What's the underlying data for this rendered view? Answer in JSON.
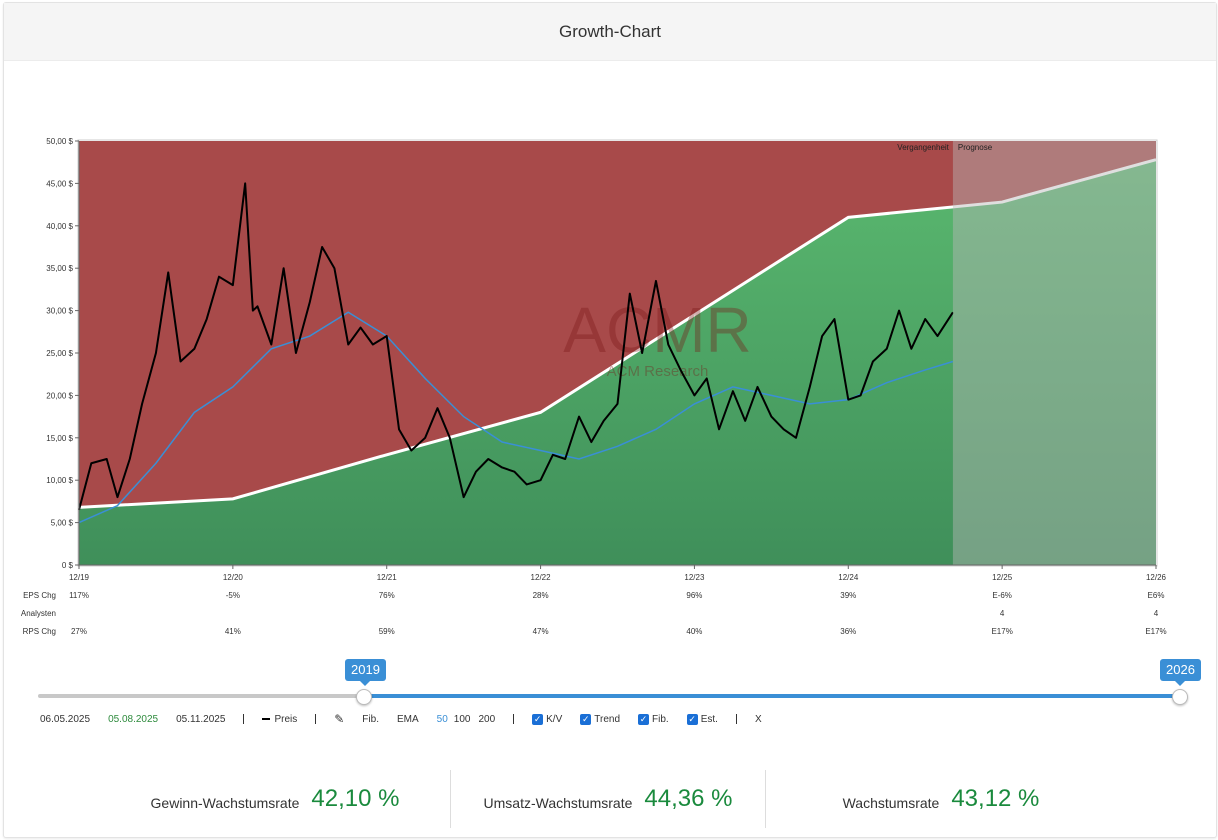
{
  "header": {
    "title": "Growth-Chart"
  },
  "chart_data": {
    "type": "line",
    "ticker": "ACMR",
    "company": "ACM Research",
    "y_ticks": [
      "0 $",
      "5,00 $",
      "10,00 $",
      "15,00 $",
      "20,00 $",
      "25,00 $",
      "30,00 $",
      "35,00 $",
      "40,00 $",
      "45,00 $",
      "50,00 $"
    ],
    "ylim": [
      0,
      50
    ],
    "x_ticks": [
      "12/19",
      "12/20",
      "12/21",
      "12/22",
      "12/23",
      "12/24",
      "12/25",
      "12/26"
    ],
    "xlim": [
      2019.92,
      2026.92
    ],
    "forecast_start": 2025.6,
    "zone_labels": {
      "past": "Vergangenheit",
      "forecast": "Prognose"
    },
    "fair_value_line": {
      "x": [
        2019.92,
        2020.92,
        2021.92,
        2022.92,
        2023.92,
        2024.92,
        2025.92,
        2026.92
      ],
      "y": [
        6.8,
        7.8,
        13.0,
        18.0,
        29.5,
        41.0,
        42.8,
        47.8
      ]
    },
    "price": {
      "x": [
        2019.92,
        2020.0,
        2020.1,
        2020.17,
        2020.25,
        2020.33,
        2020.42,
        2020.5,
        2020.58,
        2020.67,
        2020.75,
        2020.83,
        2020.92,
        2021.0,
        2021.05,
        2021.08,
        2021.17,
        2021.25,
        2021.33,
        2021.42,
        2021.5,
        2021.58,
        2021.67,
        2021.75,
        2021.83,
        2021.92,
        2022.0,
        2022.08,
        2022.17,
        2022.25,
        2022.33,
        2022.42,
        2022.5,
        2022.58,
        2022.67,
        2022.75,
        2022.83,
        2022.92,
        2023.0,
        2023.08,
        2023.17,
        2023.25,
        2023.33,
        2023.42,
        2023.5,
        2023.58,
        2023.67,
        2023.75,
        2023.83,
        2023.92,
        2024.0,
        2024.08,
        2024.17,
        2024.25,
        2024.33,
        2024.42,
        2024.5,
        2024.58,
        2024.67,
        2024.75,
        2024.83,
        2024.92,
        2025.0,
        2025.08,
        2025.17,
        2025.25,
        2025.33,
        2025.42,
        2025.5,
        2025.6
      ],
      "y": [
        6.5,
        12.0,
        12.5,
        8.0,
        12.5,
        19.0,
        25.0,
        34.5,
        24.0,
        25.5,
        29.0,
        34.0,
        33.0,
        45.0,
        30.0,
        30.5,
        26.0,
        35.0,
        25.0,
        31.0,
        37.5,
        35.0,
        26.0,
        28.0,
        26.0,
        27.0,
        16.0,
        13.5,
        15.0,
        18.5,
        15.0,
        8.0,
        11.0,
        12.5,
        11.5,
        11.0,
        9.5,
        10.0,
        13.0,
        12.5,
        17.5,
        14.5,
        17.0,
        19.0,
        32.0,
        25.0,
        33.5,
        26.0,
        23.0,
        20.0,
        22.0,
        16.0,
        20.5,
        17.0,
        21.0,
        17.5,
        16.0,
        15.0,
        21.0,
        27.0,
        29.0,
        19.5,
        20.0,
        24.0,
        25.5,
        30.0,
        25.5,
        29.0,
        27.0,
        29.8
      ]
    },
    "ema_50": {
      "x": [
        2019.92,
        2020.17,
        2020.42,
        2020.67,
        2020.92,
        2021.17,
        2021.42,
        2021.67,
        2021.92,
        2022.17,
        2022.42,
        2022.67,
        2022.92,
        2023.17,
        2023.42,
        2023.67,
        2023.92,
        2024.17,
        2024.42,
        2024.67,
        2024.92,
        2025.17,
        2025.42,
        2025.6
      ],
      "y": [
        5.0,
        7.0,
        12.0,
        18.0,
        21.0,
        25.5,
        27.0,
        29.8,
        27.0,
        22.0,
        17.5,
        14.5,
        13.5,
        12.5,
        14.0,
        16.0,
        19.0,
        21.0,
        20.0,
        19.0,
        19.5,
        21.5,
        23.0,
        24.0
      ]
    },
    "table": {
      "row_labels": [
        "EPS Chg",
        "Analysten",
        "RPS Chg"
      ],
      "eps_chg": [
        "117%",
        "-5%",
        "76%",
        "28%",
        "96%",
        "39%",
        "E-6%",
        "E6%"
      ],
      "analysten": [
        "",
        "",
        "",
        "",
        "",
        "",
        "4",
        "4"
      ],
      "rps_chg": [
        "27%",
        "41%",
        "59%",
        "47%",
        "40%",
        "36%",
        "E17%",
        "E17%"
      ]
    },
    "colors": {
      "red_zone": "#a84a4a",
      "green_zone": "#4aa266",
      "forecast_overlay": "#b9b9b9",
      "price_line": "#000000",
      "ema_line": "#3a8fd6",
      "fair_value": "#ffffff"
    }
  },
  "slider": {
    "start_label": "2019",
    "end_label": "2026"
  },
  "toolbar": {
    "date1": "06.05.2025",
    "date2": "05.08.2025",
    "date3": "05.11.2025",
    "preis": "Preis",
    "fib": "Fib.",
    "ema": "EMA",
    "ema50": "50",
    "ema100": "100",
    "ema200": "200",
    "kv": "K/V",
    "trend": "Trend",
    "fib2": "Fib.",
    "est": "Est.",
    "close": "X"
  },
  "stats": [
    {
      "label": "Gewinn-Wachstumsrate",
      "value": "42,10 %"
    },
    {
      "label": "Umsatz-Wachstumsrate",
      "value": "44,36 %"
    },
    {
      "label": "Wachstumsrate",
      "value": "43,12 %"
    }
  ]
}
